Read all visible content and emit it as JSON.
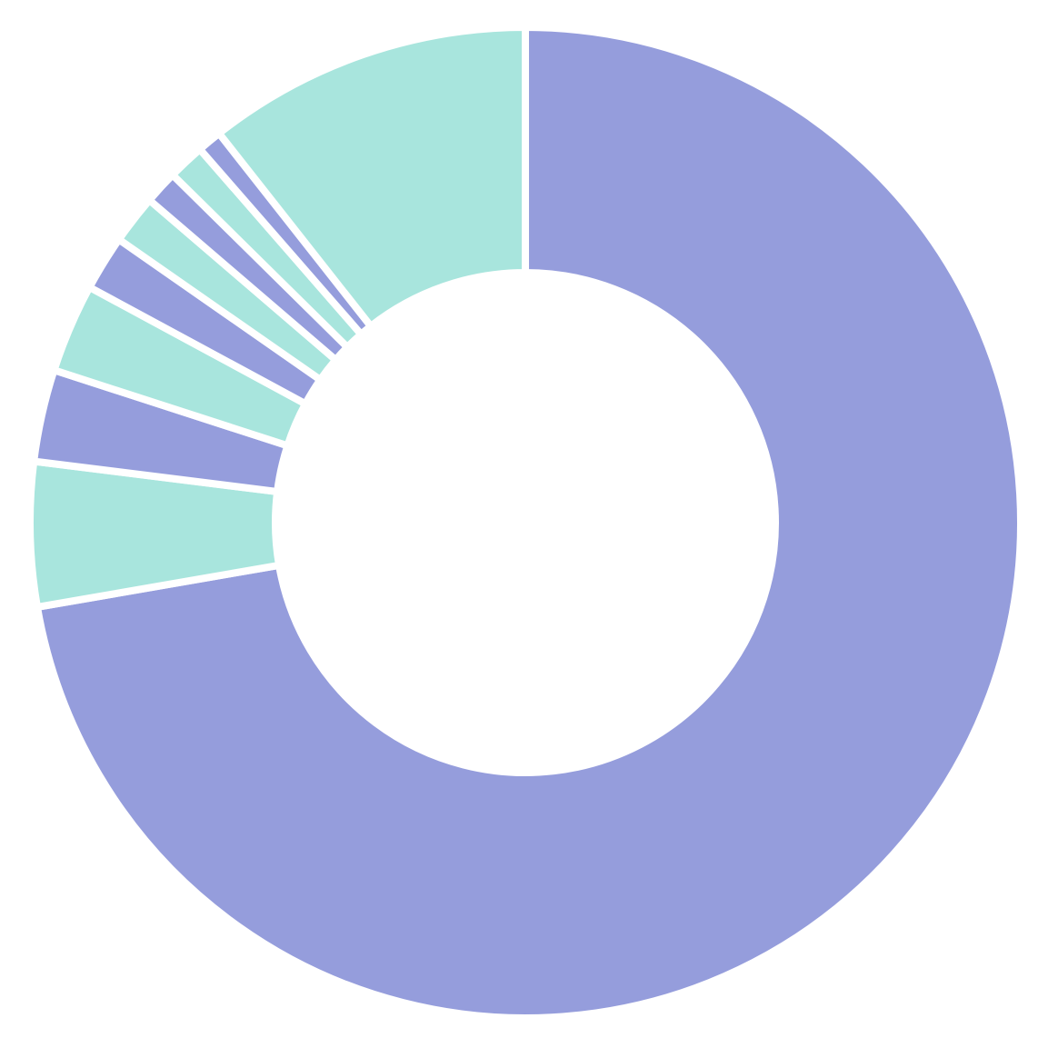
{
  "chart_data": {
    "type": "donut",
    "values": [
      72.2,
      4.7,
      3.0,
      2.9,
      1.8,
      1.6,
      1.1,
      1.2,
      0.8,
      10.6
    ],
    "colors": [
      "#959ddc",
      "#a8e5dd",
      "#959ddc",
      "#a8e5dd",
      "#959ddc",
      "#a8e5dd",
      "#959ddc",
      "#a8e5dd",
      "#959ddc",
      "#a8e5dd"
    ]
  }
}
